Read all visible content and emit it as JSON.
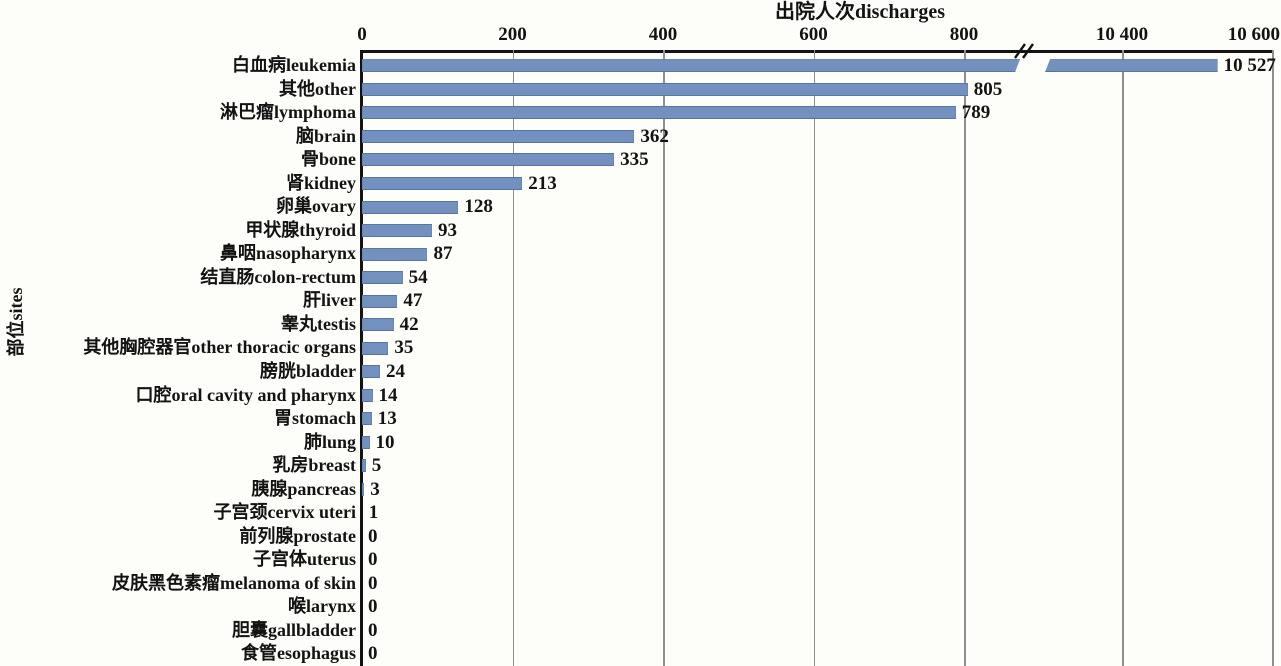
{
  "chart_data": {
    "type": "bar",
    "orientation": "horizontal",
    "title": "出院人次discharges",
    "ylabel": "部位sites",
    "xlabel": "",
    "grid": "vertical-gridlines-on",
    "axis_position": "top",
    "axis_break_between": [
      800,
      10400
    ],
    "x_ticks": [
      {
        "value": 0,
        "label": "0"
      },
      {
        "value": 200,
        "label": "200"
      },
      {
        "value": 400,
        "label": "400"
      },
      {
        "value": 600,
        "label": "600"
      },
      {
        "value": 800,
        "label": "800"
      },
      {
        "value": 10400,
        "label": "10 400"
      },
      {
        "value": 10600,
        "label": "10 600"
      }
    ],
    "categories": [
      "白血病leukemia",
      "其他other",
      "淋巴瘤lymphoma",
      "脑brain",
      "骨bone",
      "肾kidney",
      "卵巢ovary",
      "甲状腺thyroid",
      "鼻咽nasopharynx",
      "结直肠colon-rectum",
      "肝liver",
      "睾丸testis",
      "其他胸腔器官other thoracic organs",
      "膀胱bladder",
      "口腔oral cavity and pharynx",
      "胃stomach",
      "肺lung",
      "乳房breast",
      "胰腺pancreas",
      "子宫颈cervix uteri",
      "前列腺prostate",
      "子宫体uterus",
      "皮肤黑色素瘤melanoma of skin",
      "喉larynx",
      "胆囊gallbladder",
      "食管esophagus"
    ],
    "values": [
      10527,
      805,
      789,
      362,
      335,
      213,
      128,
      93,
      87,
      54,
      47,
      42,
      35,
      24,
      14,
      13,
      10,
      5,
      3,
      1,
      0,
      0,
      0,
      0,
      0,
      0
    ],
    "value_labels": [
      "10 527",
      "805",
      "789",
      "362",
      "335",
      "213",
      "128",
      "93",
      "87",
      "54",
      "47",
      "42",
      "35",
      "24",
      "14",
      "13",
      "10",
      "5",
      "3",
      "1",
      "0",
      "0",
      "0",
      "0",
      "0",
      "0"
    ],
    "colors": {
      "bar_fill": "#7391be",
      "bar_edge": "#58749f",
      "axis": "#131313",
      "gridline": "#8f8f8f",
      "text": "#131313",
      "background": "#fdfdfa"
    }
  }
}
